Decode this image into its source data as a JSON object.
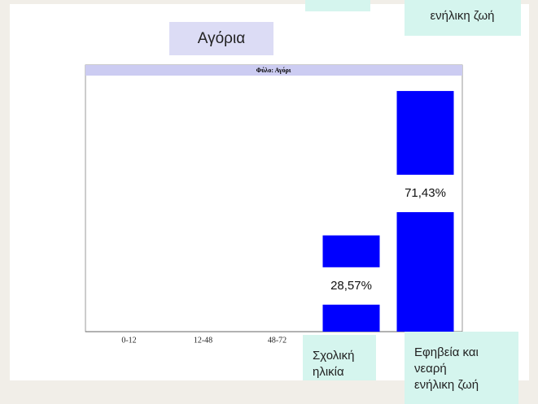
{
  "slide": {
    "heading": "Αγόρια",
    "top_labels": [
      {
        "lines": []
      },
      {
        "lines": [
          "ενήλικη ζωή"
        ]
      }
    ],
    "annotations": [
      {
        "lines": [
          "Σχολική",
          "ηλικία"
        ]
      },
      {
        "lines": [
          "Εφηβεία και",
          "νεαρή",
          "ενήλικη ζωή"
        ]
      }
    ]
  },
  "chart_data": {
    "type": "bar",
    "title": "Φύλο: Αγόρι",
    "categories": [
      "0-12",
      "12-48",
      "48-72",
      null,
      null
    ],
    "values": [
      0,
      0,
      0,
      28.57,
      71.43
    ],
    "value_labels": [
      null,
      null,
      null,
      "28,57%",
      "71,43%"
    ],
    "color": "#0000ff",
    "ylim": [
      0,
      76
    ],
    "grid": false
  }
}
